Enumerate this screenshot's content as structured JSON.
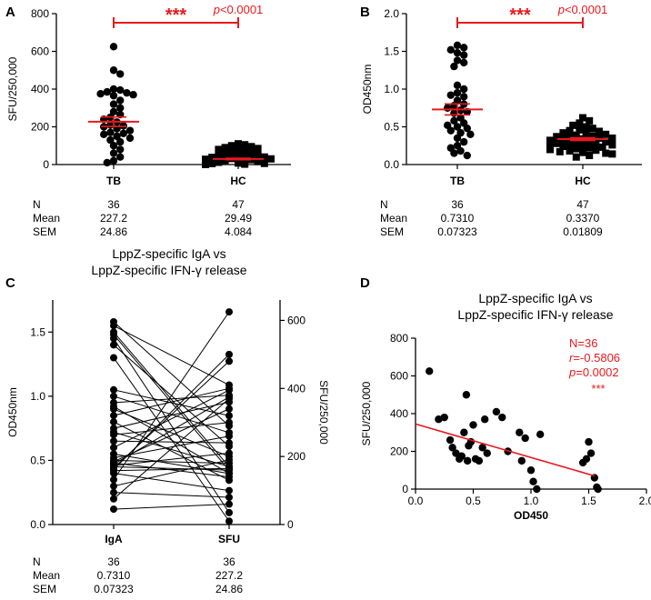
{
  "chart_data": [
    {
      "panel": "A",
      "type": "scatter",
      "ylabel": "SFU/250,000",
      "ylim": [
        0,
        800
      ],
      "yticks": [
        0,
        200,
        400,
        600,
        800
      ],
      "categories": [
        "TB",
        "HC"
      ],
      "significance": {
        "stars": "***",
        "p_label": "p",
        "p_value": "<0.0001"
      },
      "series": [
        {
          "name": "TB",
          "marker": "circle",
          "mean": 227.2,
          "sem": 24.86,
          "values": [
            625,
            500,
            480,
            400,
            395,
            385,
            380,
            375,
            370,
            365,
            340,
            320,
            300,
            280,
            265,
            250,
            240,
            225,
            210,
            205,
            200,
            190,
            180,
            170,
            165,
            160,
            150,
            140,
            130,
            120,
            100,
            80,
            60,
            40,
            20,
            10
          ]
        },
        {
          "name": "HC",
          "marker": "square",
          "mean": 29.49,
          "sem": 4.084,
          "values": [
            110,
            105,
            100,
            95,
            90,
            85,
            80,
            75,
            70,
            65,
            60,
            55,
            50,
            45,
            42,
            40,
            38,
            35,
            32,
            30,
            28,
            26,
            24,
            22,
            20,
            18,
            16,
            14,
            12,
            10,
            10,
            8,
            8,
            6,
            6,
            5,
            5,
            4,
            4,
            3,
            3,
            2,
            2,
            1,
            1,
            0,
            0
          ]
        }
      ],
      "stats_table": {
        "labels": [
          "N",
          "Mean",
          "SEM"
        ],
        "TB": [
          "36",
          "227.2",
          "24.86"
        ],
        "HC": [
          "47",
          "29.49",
          "4.084"
        ]
      }
    },
    {
      "panel": "B",
      "type": "scatter",
      "ylabel": "OD450nm",
      "ylim": [
        0,
        2.0
      ],
      "yticks": [
        "0.0",
        "0.5",
        "1.0",
        "1.5",
        "2.0"
      ],
      "categories": [
        "TB",
        "HC"
      ],
      "significance": {
        "stars": "***",
        "p_label": "p",
        "p_value": "<0.0001"
      },
      "series": [
        {
          "name": "TB",
          "marker": "circle",
          "mean": 0.731,
          "sem": 0.07323,
          "values": [
            1.58,
            1.55,
            1.52,
            1.48,
            1.45,
            1.38,
            1.35,
            1.3,
            1.05,
            1.0,
            0.95,
            0.92,
            0.9,
            0.85,
            0.8,
            0.78,
            0.75,
            0.72,
            0.7,
            0.68,
            0.62,
            0.58,
            0.55,
            0.52,
            0.5,
            0.48,
            0.45,
            0.42,
            0.4,
            0.35,
            0.3,
            0.25,
            0.22,
            0.18,
            0.15,
            0.12
          ]
        },
        {
          "name": "HC",
          "marker": "square",
          "mean": 0.337,
          "sem": 0.01809,
          "values": [
            0.62,
            0.58,
            0.55,
            0.52,
            0.5,
            0.48,
            0.46,
            0.45,
            0.44,
            0.42,
            0.41,
            0.4,
            0.39,
            0.38,
            0.37,
            0.36,
            0.35,
            0.35,
            0.34,
            0.33,
            0.32,
            0.32,
            0.31,
            0.3,
            0.3,
            0.29,
            0.28,
            0.28,
            0.27,
            0.26,
            0.25,
            0.25,
            0.24,
            0.23,
            0.22,
            0.22,
            0.21,
            0.2,
            0.2,
            0.19,
            0.18,
            0.17,
            0.16,
            0.15,
            0.14,
            0.12,
            0.1
          ]
        }
      ],
      "stats_table": {
        "labels": [
          "N",
          "Mean",
          "SEM"
        ],
        "TB": [
          "36",
          "0.7310",
          "0.07323"
        ],
        "HC": [
          "47",
          "0.3370",
          "0.01809"
        ]
      }
    },
    {
      "panel": "C",
      "type": "line",
      "title": [
        "LppZ-specific IgA vs",
        "LppZ-specific IFN-γ release"
      ],
      "ylabel_left": "OD450nm",
      "ylabel_right": "SFU/250,000",
      "ylim_left": [
        0,
        1.75
      ],
      "yticks_left": [
        "0.0",
        "0.5",
        "1.0",
        "1.5"
      ],
      "ylim_right": [
        0,
        660
      ],
      "yticks_right": [
        "0",
        "200",
        "400",
        "600"
      ],
      "categories": [
        "IgA",
        "SFU"
      ],
      "pairs": [
        [
          1.58,
          290
        ],
        [
          1.55,
          410
        ],
        [
          1.5,
          170
        ],
        [
          1.48,
          160
        ],
        [
          1.45,
          35
        ],
        [
          1.4,
          230
        ],
        [
          1.3,
          10
        ],
        [
          1.05,
          320
        ],
        [
          1.0,
          270
        ],
        [
          0.95,
          380
        ],
        [
          0.92,
          150
        ],
        [
          0.9,
          200
        ],
        [
          0.85,
          400
        ],
        [
          0.8,
          130
        ],
        [
          0.75,
          360
        ],
        [
          0.72,
          170
        ],
        [
          0.7,
          300
        ],
        [
          0.65,
          240
        ],
        [
          0.6,
          395
        ],
        [
          0.55,
          150
        ],
        [
          0.52,
          260
        ],
        [
          0.5,
          180
        ],
        [
          0.49,
          340
        ],
        [
          0.48,
          140
        ],
        [
          0.47,
          375
        ],
        [
          0.46,
          210
        ],
        [
          0.45,
          160
        ],
        [
          0.44,
          480
        ],
        [
          0.43,
          500
        ],
        [
          0.42,
          165
        ],
        [
          0.4,
          100
        ],
        [
          0.35,
          625
        ],
        [
          0.3,
          190
        ],
        [
          0.25,
          80
        ],
        [
          0.2,
          370
        ],
        [
          0.12,
          60
        ]
      ],
      "stats_table": {
        "labels": [
          "N",
          "Mean",
          "SEM"
        ],
        "IgA": [
          "36",
          "0.7310",
          "0.07323"
        ],
        "SFU": [
          "36",
          "227.2",
          "24.86"
        ]
      }
    },
    {
      "panel": "D",
      "type": "scatter",
      "title": [
        "LppZ-specific IgA vs",
        "LppZ-specific IFN-γ release"
      ],
      "xlabel": "OD450",
      "ylabel": "SFU/250,000",
      "xlim": [
        0,
        2.0
      ],
      "xticks": [
        "0.0",
        "0.5",
        "1.0",
        "1.5",
        "2.0"
      ],
      "ylim": [
        0,
        800
      ],
      "yticks": [
        "0",
        "200",
        "400",
        "600",
        "800"
      ],
      "points": [
        [
          0.12,
          625
        ],
        [
          0.2,
          370
        ],
        [
          0.25,
          380
        ],
        [
          0.3,
          260
        ],
        [
          0.32,
          220
        ],
        [
          0.35,
          190
        ],
        [
          0.38,
          160
        ],
        [
          0.4,
          175
        ],
        [
          0.42,
          300
        ],
        [
          0.44,
          500
        ],
        [
          0.45,
          150
        ],
        [
          0.46,
          230
        ],
        [
          0.48,
          250
        ],
        [
          0.5,
          340
        ],
        [
          0.52,
          160
        ],
        [
          0.55,
          150
        ],
        [
          0.58,
          220
        ],
        [
          0.6,
          370
        ],
        [
          0.62,
          190
        ],
        [
          0.7,
          410
        ],
        [
          0.75,
          380
        ],
        [
          0.8,
          200
        ],
        [
          0.9,
          300
        ],
        [
          0.92,
          150
        ],
        [
          0.95,
          270
        ],
        [
          1.0,
          100
        ],
        [
          1.02,
          40
        ],
        [
          1.05,
          0
        ],
        [
          1.08,
          290
        ],
        [
          1.45,
          140
        ],
        [
          1.48,
          160
        ],
        [
          1.5,
          250
        ],
        [
          1.52,
          190
        ],
        [
          1.55,
          60
        ],
        [
          1.57,
          10
        ],
        [
          1.58,
          0
        ]
      ],
      "regression": {
        "x": [
          0.0,
          1.55
        ],
        "y": [
          345,
          70
        ]
      },
      "annotations": {
        "n": "N=36",
        "r_label": "r",
        "r_value": "=-0.5806",
        "p_label": "p",
        "p_value": "=0.0002",
        "stars": "***"
      }
    }
  ]
}
